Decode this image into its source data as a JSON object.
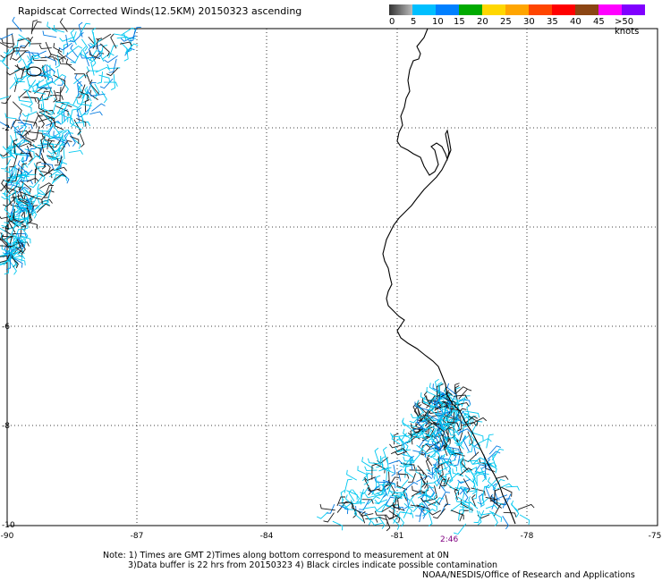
{
  "title": "Rapidscat Corrected Winds(12.5KM) 20150323 ascending",
  "legend": {
    "labels": [
      "0",
      "5",
      "10",
      "15",
      "20",
      "25",
      "30",
      "35",
      "40",
      "45",
      ">50 knots"
    ],
    "colors": [
      "#555555",
      "#00bfff",
      "#0080ff",
      "#00aa00",
      "#ffd700",
      "#ffa500",
      "#ff4500",
      "#ff0000",
      "#8b4513",
      "#ff00ff",
      "#8000ff",
      "#300070"
    ]
  },
  "map": {
    "x_ticks": [
      "-90",
      "-87",
      "-84",
      "-81",
      "-78",
      "-75"
    ],
    "y_ticks": [
      "-2",
      "-4",
      "-6",
      "-8",
      "-10"
    ],
    "time_label": "2:46"
  },
  "notes": {
    "line1": "Note: 1) Times are GMT 2)Times along bottom correspond to measurement at 0N",
    "line2": "3)Data buffer is 22 hrs from 20150323 4) Black circles indicate possible contamination",
    "credit": "NOAA/NESDIS/Office of Research and Applications"
  }
}
